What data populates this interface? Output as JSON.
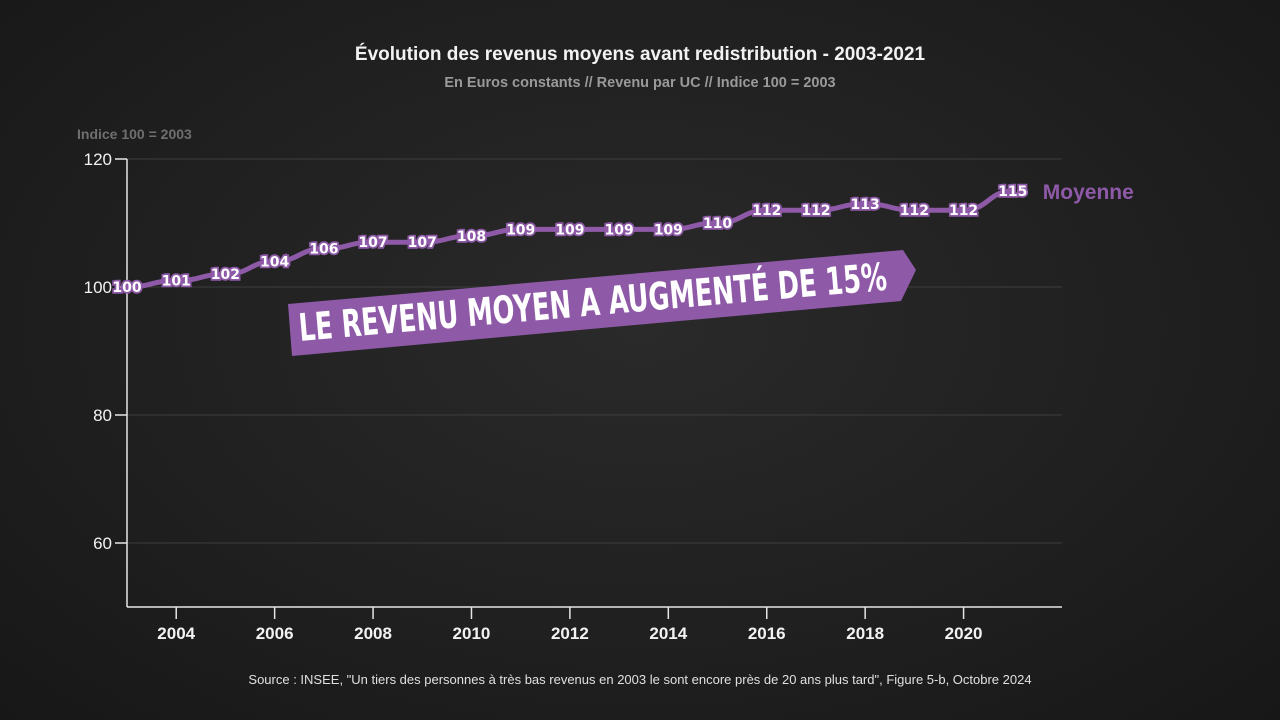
{
  "chart_data": {
    "type": "line",
    "title": "Évolution des revenus moyens avant redistribution - 2003-2021",
    "subtitle": "En Euros constants // Revenu par UC // Indice 100 = 2003",
    "ylabel": "Indice 100 = 2003",
    "xlabel": "",
    "xlim": [
      2003,
      2022
    ],
    "ylim": [
      50,
      120
    ],
    "yticks": [
      60,
      80,
      100,
      120
    ],
    "xticks": [
      2004,
      2006,
      2008,
      2010,
      2012,
      2014,
      2016,
      2018,
      2020
    ],
    "grid": true,
    "series": [
      {
        "name": "Moyenne",
        "color": "#8e5aa8",
        "x": [
          2003,
          2004,
          2005,
          2006,
          2007,
          2008,
          2009,
          2010,
          2011,
          2012,
          2013,
          2014,
          2015,
          2016,
          2017,
          2018,
          2019,
          2020,
          2021
        ],
        "values": [
          100,
          101,
          102,
          104,
          106,
          107,
          107,
          108,
          109,
          109,
          109,
          109,
          110,
          112,
          112,
          113,
          112,
          112,
          115
        ]
      }
    ],
    "annotation": "LE REVENU MOYEN A AUGMENTÉ DE 15%",
    "source": "Source : INSEE, \"Un tiers des personnes à très bas revenus en 2003 le sont encore près de 20 ans plus tard\", Figure 5-b, Octobre 2024"
  }
}
